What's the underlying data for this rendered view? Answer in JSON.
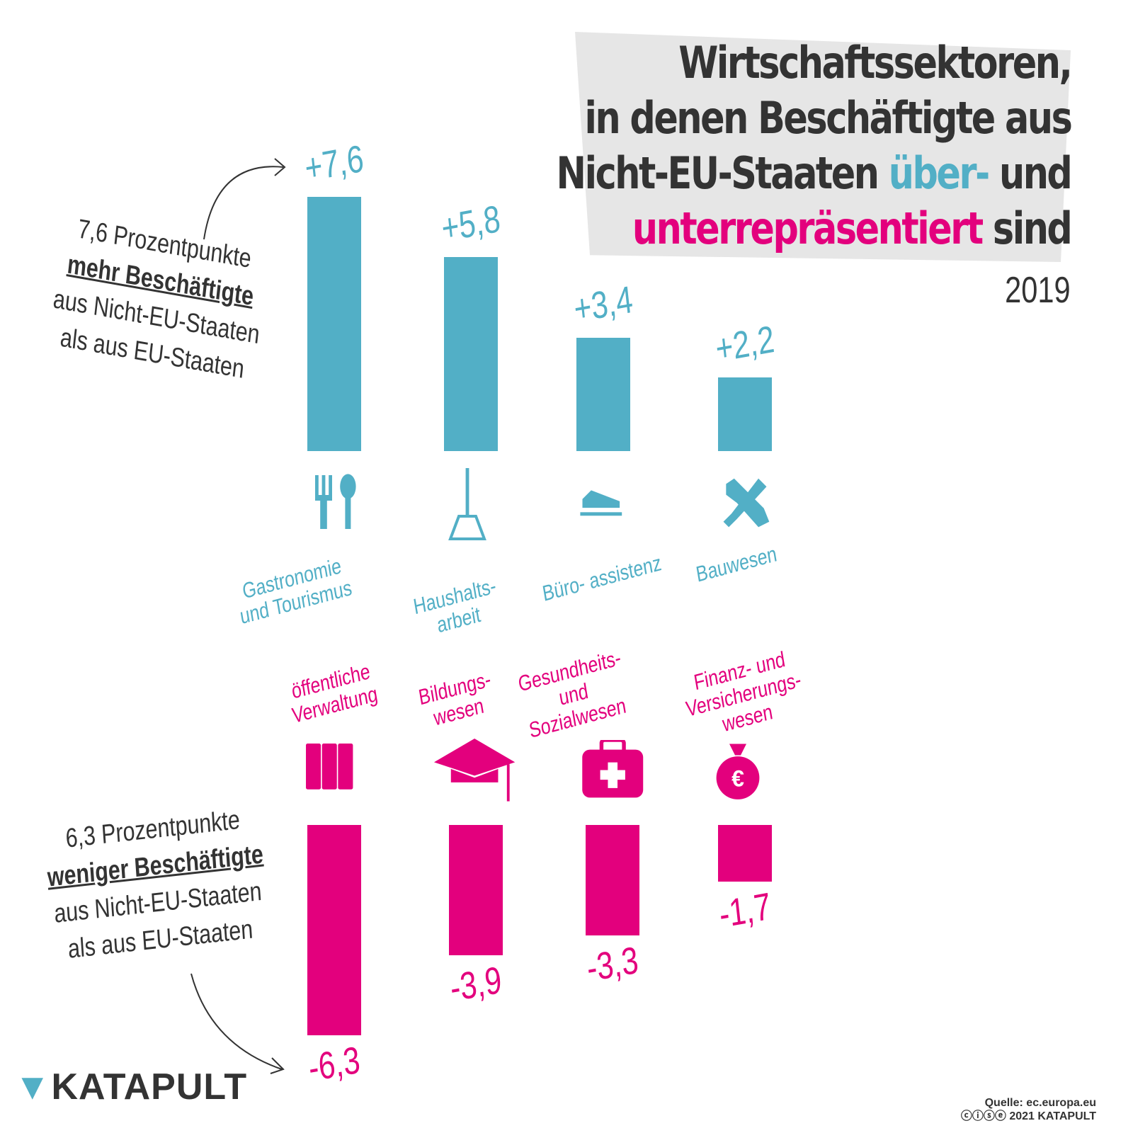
{
  "chart_data": {
    "type": "bar",
    "title_lines": [
      "Wirtschaftssektoren,",
      "in denen Beschäftigte aus",
      "Nicht-EU-Staaten",
      "über-",
      "und",
      "unterrepräsentiert",
      "sind"
    ],
    "subtitle": "2019",
    "colors": {
      "positive": "#52afc6",
      "negative": "#e3007d",
      "text": "#333333"
    },
    "series": [
      {
        "categories": [
          "Gastronomie und Tourismus",
          "Haushalts- arbeit",
          "Büro- assistenz",
          "Bauwesen"
        ],
        "values": [
          7.6,
          5.8,
          3.4,
          2.2
        ],
        "labels": [
          "+7,6",
          "+5,8",
          "+3,4",
          "+2,2"
        ],
        "icons": [
          "fork-spoon-icon",
          "broom-icon",
          "stapler-icon",
          "tools-icon"
        ]
      },
      {
        "categories": [
          "öffentliche Verwaltung",
          "Bildungs- wesen",
          "Gesundheits- und Sozialwesen",
          "Finanz- und Versicherungs- wesen"
        ],
        "values": [
          -6.3,
          -3.9,
          -3.3,
          -1.7
        ],
        "labels": [
          "-6,3",
          "-3,9",
          "-3,3",
          "-1,7"
        ],
        "icons": [
          "binders-icon",
          "graduation-cap-icon",
          "first-aid-kit-icon",
          "money-bag-euro-icon"
        ]
      }
    ]
  },
  "notes": {
    "top": {
      "l1": "7,6 Prozentpunkte",
      "l2b": "mehr Beschäftigte",
      "l3": "aus Nicht-EU-Staaten",
      "l4": "als aus EU-Staaten"
    },
    "bottom": {
      "l1": "6,3 Prozentpunkte",
      "l2b": "weniger Beschäftigte",
      "l3": "aus Nicht-EU-Staaten",
      "l4": "als aus EU-Staaten"
    }
  },
  "footer": {
    "logo": "KATAPULT",
    "source": "Quelle: ec.europa.eu",
    "license": "2021 KATAPULT"
  }
}
